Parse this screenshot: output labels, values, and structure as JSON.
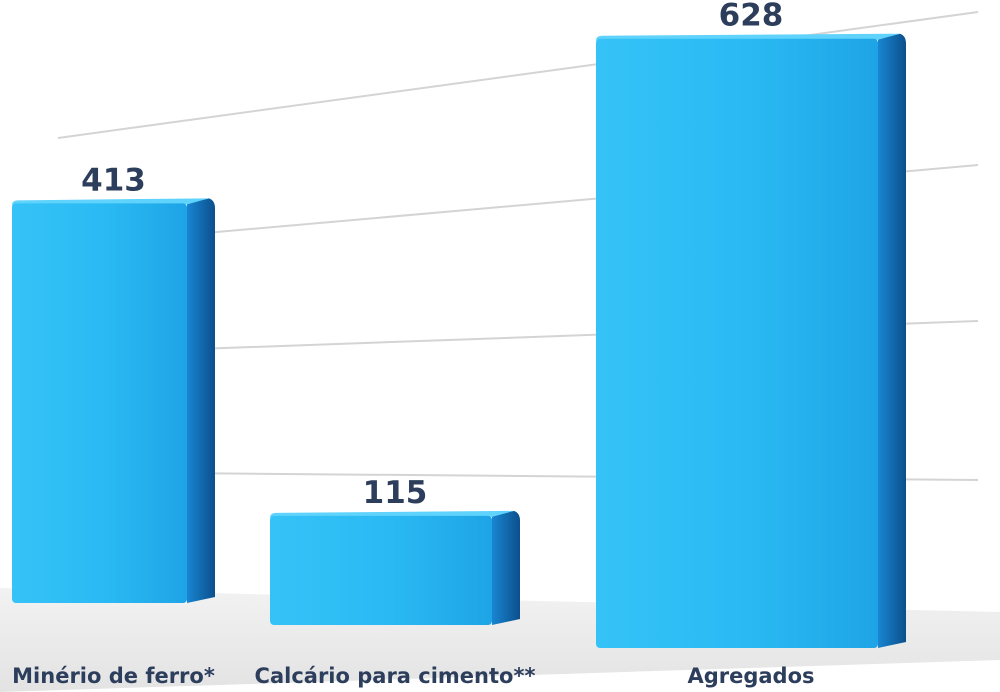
{
  "chart_data": {
    "type": "bar",
    "categories": [
      "Minério de ferro*",
      "Calcário para cimento**",
      "Agregados"
    ],
    "values": [
      413,
      115,
      628
    ],
    "data_labels": [
      "413",
      "115",
      "628"
    ],
    "title": "",
    "xlabel": "",
    "ylabel": "",
    "grid": true,
    "legend": "none",
    "colors": {
      "bar_front": "#29b8f2",
      "bar_side": "#1070b8",
      "label": "#2c3e5c",
      "grid": "#d4d4d4"
    }
  }
}
